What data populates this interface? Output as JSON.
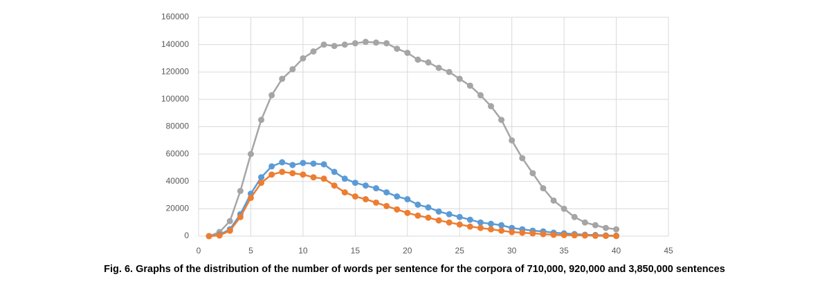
{
  "chart_data": {
    "type": "line",
    "caption": "Fig. 6. Graphs of the distribution of the number of words per sentence for the corpora of 710,000, 920,000 and 3,850,000 sentences",
    "x": [
      1,
      2,
      3,
      4,
      5,
      6,
      7,
      8,
      9,
      10,
      11,
      12,
      13,
      14,
      15,
      16,
      17,
      18,
      19,
      20,
      21,
      22,
      23,
      24,
      25,
      26,
      27,
      28,
      29,
      30,
      31,
      32,
      33,
      34,
      35,
      36,
      37,
      38,
      39,
      40
    ],
    "series": [
      {
        "color": "#a5a5a5",
        "values": [
          0,
          3000,
          11000,
          33000,
          60000,
          85000,
          103000,
          115000,
          122000,
          130000,
          135000,
          140000,
          139000,
          140000,
          141000,
          142000,
          141500,
          141000,
          137000,
          134000,
          129000,
          127000,
          123000,
          120000,
          115000,
          110000,
          103000,
          95000,
          85000,
          70000,
          57000,
          46000,
          35000,
          26000,
          20000,
          14000,
          10000,
          8000,
          6000,
          5000
        ]
      },
      {
        "color": "#5b9bd5",
        "values": [
          0,
          1000,
          5000,
          16000,
          31000,
          43000,
          51000,
          54000,
          52000,
          53500,
          53000,
          52500,
          47000,
          42000,
          39000,
          37000,
          35000,
          32000,
          29000,
          27000,
          23000,
          21000,
          18000,
          16000,
          14000,
          12000,
          10000,
          9000,
          8000,
          6000,
          5000,
          4000,
          3500,
          2500,
          2000,
          1500,
          1000,
          800,
          500,
          300
        ]
      },
      {
        "color": "#ed7d31",
        "values": [
          0,
          500,
          4000,
          14000,
          28000,
          39000,
          45000,
          47000,
          46000,
          45000,
          43000,
          42000,
          37000,
          32000,
          29000,
          27000,
          24500,
          22000,
          19500,
          17000,
          15000,
          13500,
          11500,
          10000,
          8500,
          7000,
          6000,
          5000,
          4000,
          3000,
          2500,
          2000,
          1500,
          1000,
          800,
          600,
          500,
          300,
          200,
          100
        ]
      }
    ],
    "xlim": [
      0,
      45
    ],
    "xticks": [
      0,
      5,
      10,
      15,
      20,
      25,
      30,
      35,
      40,
      45
    ],
    "ylim": [
      0,
      160000
    ],
    "yticks": [
      0,
      20000,
      40000,
      60000,
      80000,
      100000,
      120000,
      140000,
      160000
    ],
    "grid": true
  }
}
